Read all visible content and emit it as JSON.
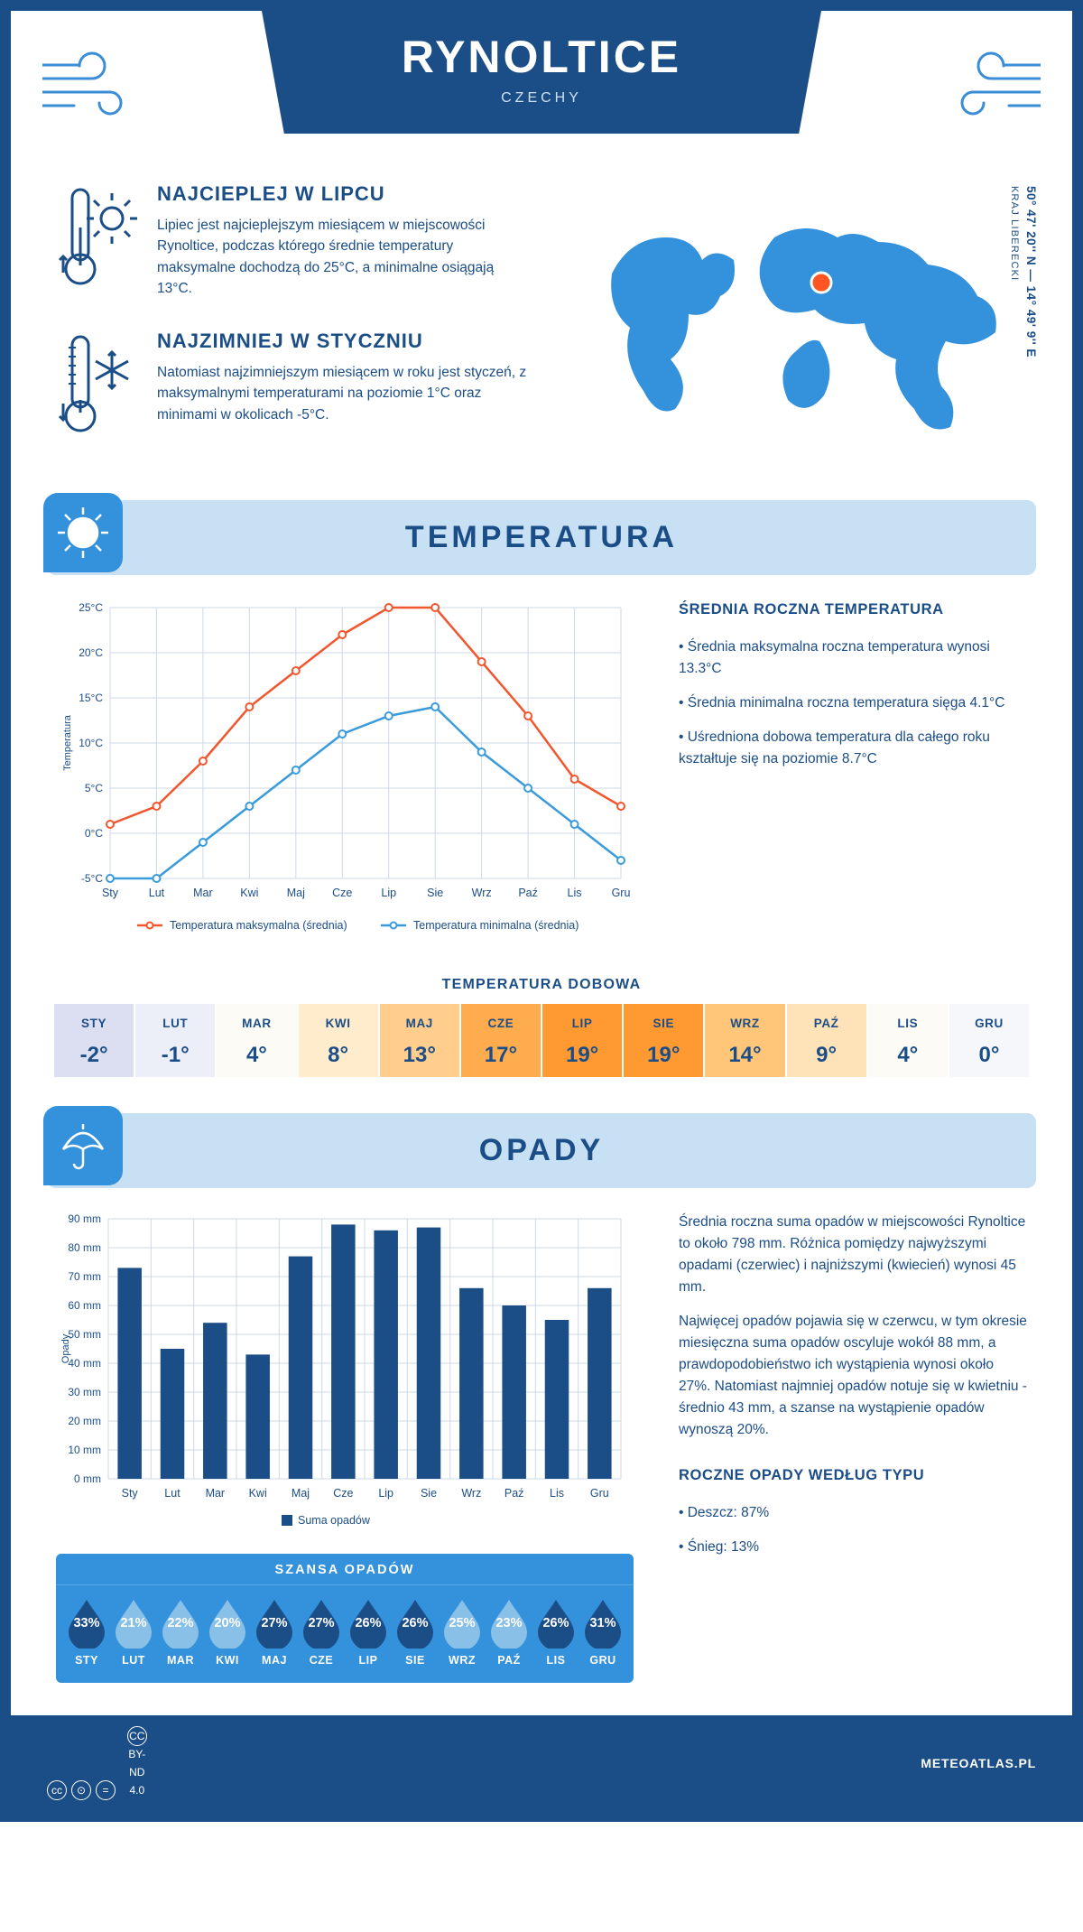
{
  "header": {
    "city": "RYNOLTICE",
    "country": "CZECHY"
  },
  "location": {
    "coords": "50° 47' 20'' N — 14° 49' 9'' E",
    "region": "KRAJ LIBERECKI"
  },
  "intro": {
    "hot": {
      "title": "NAJCIEPLEJ W LIPCU",
      "body": "Lipiec jest najcieplejszym miesiącem w miejscowości Rynoltice, podczas którego średnie temperatury maksymalne dochodzą do 25°C, a minimalne osiągają 13°C."
    },
    "cold": {
      "title": "NAJZIMNIEJ W STYCZNIU",
      "body": "Natomiast najzimniejszym miesiącem w roku jest styczeń, z maksymalnymi temperaturami na poziomie 1°C oraz minimami w okolicach -5°C."
    }
  },
  "months": [
    "Sty",
    "Lut",
    "Mar",
    "Kwi",
    "Maj",
    "Cze",
    "Lip",
    "Sie",
    "Wrz",
    "Paź",
    "Lis",
    "Gru"
  ],
  "months_upper": [
    "STY",
    "LUT",
    "MAR",
    "KWI",
    "MAJ",
    "CZE",
    "LIP",
    "SIE",
    "WRZ",
    "PAŹ",
    "LIS",
    "GRU"
  ],
  "temperature": {
    "section_title": "TEMPERATURA",
    "ylabel": "Temperatura",
    "ytick_min": -5,
    "ytick_max": 25,
    "ytick_step": 5,
    "max_series": {
      "label": "Temperatura maksymalna (średnia)",
      "color": "#f1572f",
      "values": [
        1,
        3,
        8,
        14,
        18,
        22,
        25,
        25,
        19,
        13,
        6,
        3
      ]
    },
    "min_series": {
      "label": "Temperatura minimalna (średnia)",
      "color": "#3a9bdc",
      "values": [
        -5,
        -5,
        -1,
        3,
        7,
        11,
        13,
        14,
        9,
        5,
        1,
        -3
      ]
    },
    "summary": {
      "heading": "ŚREDNIA ROCZNA TEMPERATURA",
      "p1": "• Średnia maksymalna roczna temperatura wynosi 13.3°C",
      "p2": "• Średnia minimalna roczna temperatura sięga 4.1°C",
      "p3": "• Uśredniona dobowa temperatura dla całego roku kształtuje się na poziomie 8.7°C"
    },
    "daily": {
      "title": "TEMPERATURA DOBOWA",
      "values": [
        "-2°",
        "-1°",
        "4°",
        "8°",
        "13°",
        "17°",
        "19°",
        "19°",
        "14°",
        "9°",
        "4°",
        "0°"
      ],
      "cell_colors": [
        "#dcdff2",
        "#eceef8",
        "#fdfbf5",
        "#ffeccc",
        "#ffce8c",
        "#ffac4e",
        "#ff9a33",
        "#ff9a33",
        "#ffc578",
        "#ffe3b8",
        "#fdfbf5",
        "#f6f7fb"
      ]
    }
  },
  "precip": {
    "section_title": "OPADY",
    "ylabel": "Opady",
    "ytick_min": 0,
    "ytick_max": 90,
    "ytick_step": 10,
    "unit": "mm",
    "bar_color": "#1b4d87",
    "values": [
      73,
      45,
      54,
      43,
      77,
      88,
      86,
      87,
      66,
      60,
      55,
      66
    ],
    "legend": "Suma opadów",
    "summary": {
      "p1": "Średnia roczna suma opadów w miejscowości Rynoltice to około 798 mm. Różnica pomiędzy najwyższymi opadami (czerwiec) i najniższymi (kwiecień) wynosi 45 mm.",
      "p2": "Najwięcej opadów pojawia się w czerwcu, w tym okresie miesięczna suma opadów oscyluje wokół 88 mm, a prawdopodobieństwo ich wystąpienia wynosi około 27%. Natomiast najmniej opadów notuje się w kwietniu - średnio 43 mm, a szanse na wystąpienie opadów wynoszą 20%."
    },
    "chance": {
      "title": "SZANSA OPADÓW",
      "values": [
        "33%",
        "21%",
        "22%",
        "20%",
        "27%",
        "27%",
        "26%",
        "26%",
        "25%",
        "23%",
        "26%",
        "31%"
      ],
      "drop_colors": [
        "dark",
        "light",
        "light",
        "light",
        "dark",
        "dark",
        "dark",
        "dark",
        "light",
        "light",
        "dark",
        "dark"
      ]
    },
    "type": {
      "heading": "ROCZNE OPADY WEDŁUG TYPU",
      "rain": "• Deszcz: 87%",
      "snow": "• Śnieg: 13%"
    }
  },
  "footer": {
    "license": "CC BY-ND 4.0",
    "site": "METEOATLAS.PL"
  },
  "style": {
    "brand": "#1b4d87",
    "accent": "#3491dc",
    "banner_bg": "#c7e0f4",
    "grid": "#cfd8e6",
    "drop_dark": "#1b4d87",
    "drop_light": "#89c0e8"
  }
}
